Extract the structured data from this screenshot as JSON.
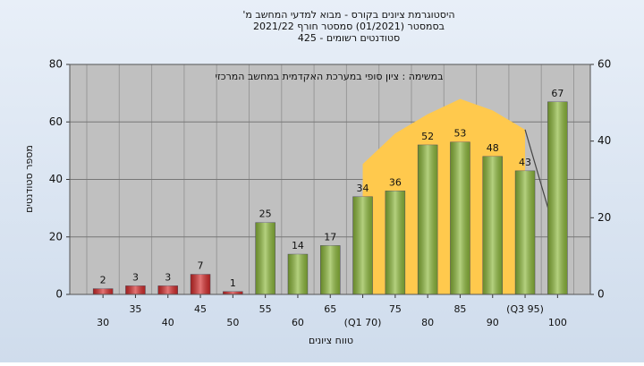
{
  "chart_data": {
    "type": "bar",
    "title": "היסטוגרמת ציונים בקורס - מבוא למדעי המחשב מ'",
    "subtitle": [
      "בסמסטר (01/2021) סמסטר חורף 2021/22",
      "סטודנטים רשומים - 425"
    ],
    "annotation": "במשימה : ציון סופי במערכת האקדמית במחשב המרכזי",
    "x_label": "טווח ציונים",
    "y_label": "מספר סטודנטים",
    "categories": [
      "30",
      "35",
      "40",
      "45",
      "50",
      "55",
      "60",
      "65",
      "(Q1 70)",
      "75",
      "80",
      "85",
      "90",
      "(Q3 95)",
      "100"
    ],
    "series": [
      {
        "values": [
          2,
          3,
          3,
          7,
          1,
          25,
          14,
          17,
          34,
          36,
          52,
          53,
          48,
          43,
          67
        ],
        "colors": [
          "#d42a2a",
          "#d42a2a",
          "#d42a2a",
          "#d42a2a",
          "#d42a2a",
          "#8cb83a",
          "#8cb83a",
          "#8cb83a",
          "#8cb83a",
          "#8cb83a",
          "#8cb83a",
          "#8cb83a",
          "#8cb83a",
          "#8cb83a",
          "#8cb83a"
        ]
      },
      {
        "type": "area",
        "axis": "y2",
        "color": "#ffc94d",
        "values": [
          null,
          null,
          null,
          null,
          null,
          null,
          null,
          null,
          34,
          42,
          47,
          51,
          48,
          43,
          14
        ]
      }
    ],
    "ylim": [
      0,
      80
    ],
    "yticks": [
      0,
      20,
      40,
      60,
      80
    ],
    "y2lim": [
      0,
      60
    ],
    "y2ticks": [
      0,
      20,
      40,
      60
    ],
    "grid": true
  }
}
